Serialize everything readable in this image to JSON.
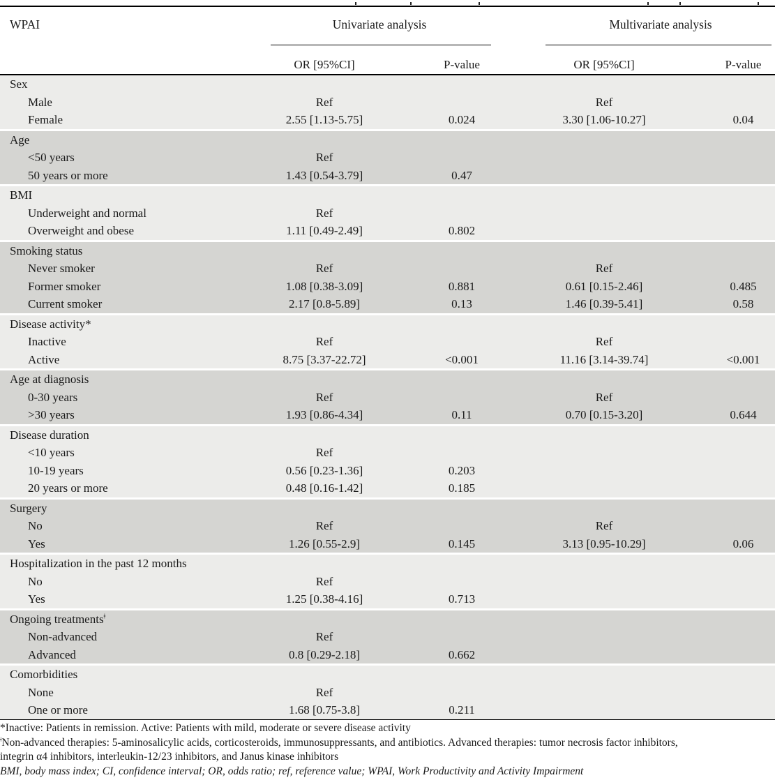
{
  "colors": {
    "section_light": "#ECECEA",
    "section_dark": "#D5D5D2",
    "text": "#1A1A1A",
    "rule": "#000000",
    "page_bg": "#FFFFFF"
  },
  "clipped_caption": {
    "marks_x": [
      509,
      588,
      686,
      928,
      974,
      1086
    ]
  },
  "table": {
    "corner_header": "WPAI",
    "group_headers": {
      "univariate": "Univariate analysis",
      "multivariate": "Multivariate analysis"
    },
    "sub_headers": {
      "or": "OR [95%CI]",
      "p": "P-value"
    },
    "sections": [
      {
        "name": "Sex",
        "sup": "",
        "rows": [
          {
            "label": "Male",
            "uni_or": "Ref",
            "uni_p": "",
            "multi_or": "Ref",
            "multi_p": ""
          },
          {
            "label": "Female",
            "uni_or": "2.55 [1.13-5.75]",
            "uni_p": "0.024",
            "multi_or": "3.30 [1.06-10.27]",
            "multi_p": "0.04"
          }
        ]
      },
      {
        "name": "Age",
        "sup": "",
        "rows": [
          {
            "label": "<50 years",
            "uni_or": "Ref",
            "uni_p": "",
            "multi_or": "",
            "multi_p": ""
          },
          {
            "label": "50 years or more",
            "uni_or": "1.43 [0.54-3.79]",
            "uni_p": "0.47",
            "multi_or": "",
            "multi_p": ""
          }
        ]
      },
      {
        "name": "BMI",
        "sup": "",
        "rows": [
          {
            "label": "Underweight and normal",
            "uni_or": "Ref",
            "uni_p": "",
            "multi_or": "",
            "multi_p": ""
          },
          {
            "label": "Overweight and obese",
            "uni_or": "1.11 [0.49-2.49]",
            "uni_p": "0.802",
            "multi_or": "",
            "multi_p": ""
          }
        ]
      },
      {
        "name": "Smoking status",
        "sup": "",
        "rows": [
          {
            "label": "Never smoker",
            "uni_or": "Ref",
            "uni_p": "",
            "multi_or": "Ref",
            "multi_p": ""
          },
          {
            "label": "Former smoker",
            "uni_or": "1.08 [0.38-3.09]",
            "uni_p": "0.881",
            "multi_or": "0.61 [0.15-2.46]",
            "multi_p": "0.485"
          },
          {
            "label": "Current smoker",
            "uni_or": "2.17 [0.8-5.89]",
            "uni_p": "0.13",
            "multi_or": "1.46 [0.39-5.41]",
            "multi_p": "0.58"
          }
        ]
      },
      {
        "name": "Disease activity*",
        "sup": "",
        "rows": [
          {
            "label": "Inactive",
            "uni_or": "Ref",
            "uni_p": "",
            "multi_or": "Ref",
            "multi_p": ""
          },
          {
            "label": "Active",
            "uni_or": "8.75 [3.37-22.72]",
            "uni_p": "<0.001",
            "multi_or": "11.16 [3.14-39.74]",
            "multi_p": "<0.001"
          }
        ]
      },
      {
        "name": "Age at diagnosis",
        "sup": "",
        "rows": [
          {
            "label": "0-30 years",
            "uni_or": "Ref",
            "uni_p": "",
            "multi_or": "Ref",
            "multi_p": ""
          },
          {
            "label": ">30 years",
            "uni_or": "1.93 [0.86-4.34]",
            "uni_p": "0.11",
            "multi_or": "0.70 [0.15-3.20]",
            "multi_p": "0.644"
          }
        ]
      },
      {
        "name": "Disease duration",
        "sup": "",
        "rows": [
          {
            "label": "<10 years",
            "uni_or": "Ref",
            "uni_p": "",
            "multi_or": "",
            "multi_p": ""
          },
          {
            "label": "10-19 years",
            "uni_or": "0.56 [0.23-1.36]",
            "uni_p": "0.203",
            "multi_or": "",
            "multi_p": ""
          },
          {
            "label": "20 years or more",
            "uni_or": "0.48 [0.16-1.42]",
            "uni_p": "0.185",
            "multi_or": "",
            "multi_p": ""
          }
        ]
      },
      {
        "name": "Surgery",
        "sup": "",
        "rows": [
          {
            "label": "No",
            "uni_or": "Ref",
            "uni_p": "",
            "multi_or": "Ref",
            "multi_p": ""
          },
          {
            "label": "Yes",
            "uni_or": "1.26 [0.55-2.9]",
            "uni_p": "0.145",
            "multi_or": "3.13 [0.95-10.29]",
            "multi_p": "0.06"
          }
        ]
      },
      {
        "name": "Hospitalization in the past 12 months",
        "sup": "",
        "rows": [
          {
            "label": "No",
            "uni_or": "Ref",
            "uni_p": "",
            "multi_or": "",
            "multi_p": ""
          },
          {
            "label": "Yes",
            "uni_or": "1.25 [0.38-4.16]",
            "uni_p": "0.713",
            "multi_or": "",
            "multi_p": ""
          }
        ]
      },
      {
        "name": "Ongoing treatments",
        "sup": "ǂ",
        "rows": [
          {
            "label": "Non-advanced",
            "uni_or": "Ref",
            "uni_p": "",
            "multi_or": "",
            "multi_p": ""
          },
          {
            "label": "Advanced",
            "uni_or": "0.8 [0.29-2.18]",
            "uni_p": "0.662",
            "multi_or": "",
            "multi_p": ""
          }
        ]
      },
      {
        "name": "Comorbidities",
        "sup": "",
        "rows": [
          {
            "label": "None",
            "uni_or": "Ref",
            "uni_p": "",
            "multi_or": "",
            "multi_p": ""
          },
          {
            "label": "One or more",
            "uni_or": "1.68 [0.75-3.8]",
            "uni_p": "0.211",
            "multi_or": "",
            "multi_p": ""
          }
        ]
      }
    ],
    "footnotes": [
      {
        "sup": "",
        "text": "*Inactive: Patients in remission. Active: Patients with mild, moderate or severe disease activity",
        "italic": false
      },
      {
        "sup": "ǂ",
        "text": "Non-advanced therapies: 5-aminosalicylic acids, corticosteroids, immunosuppressants, and antibiotics. Advanced therapies: tumor necrosis factor inhibitors,",
        "italic": false
      },
      {
        "sup": "",
        "text": "integrin α4 inhibitors, interleukin-12/23 inhibitors, and Janus kinase inhibitors",
        "italic": false
      },
      {
        "sup": "",
        "text": "BMI, body mass index; CI, confidence interval; OR, odds ratio; ref, reference value; WPAI, Work Productivity and Activity Impairment",
        "italic": true
      }
    ]
  }
}
